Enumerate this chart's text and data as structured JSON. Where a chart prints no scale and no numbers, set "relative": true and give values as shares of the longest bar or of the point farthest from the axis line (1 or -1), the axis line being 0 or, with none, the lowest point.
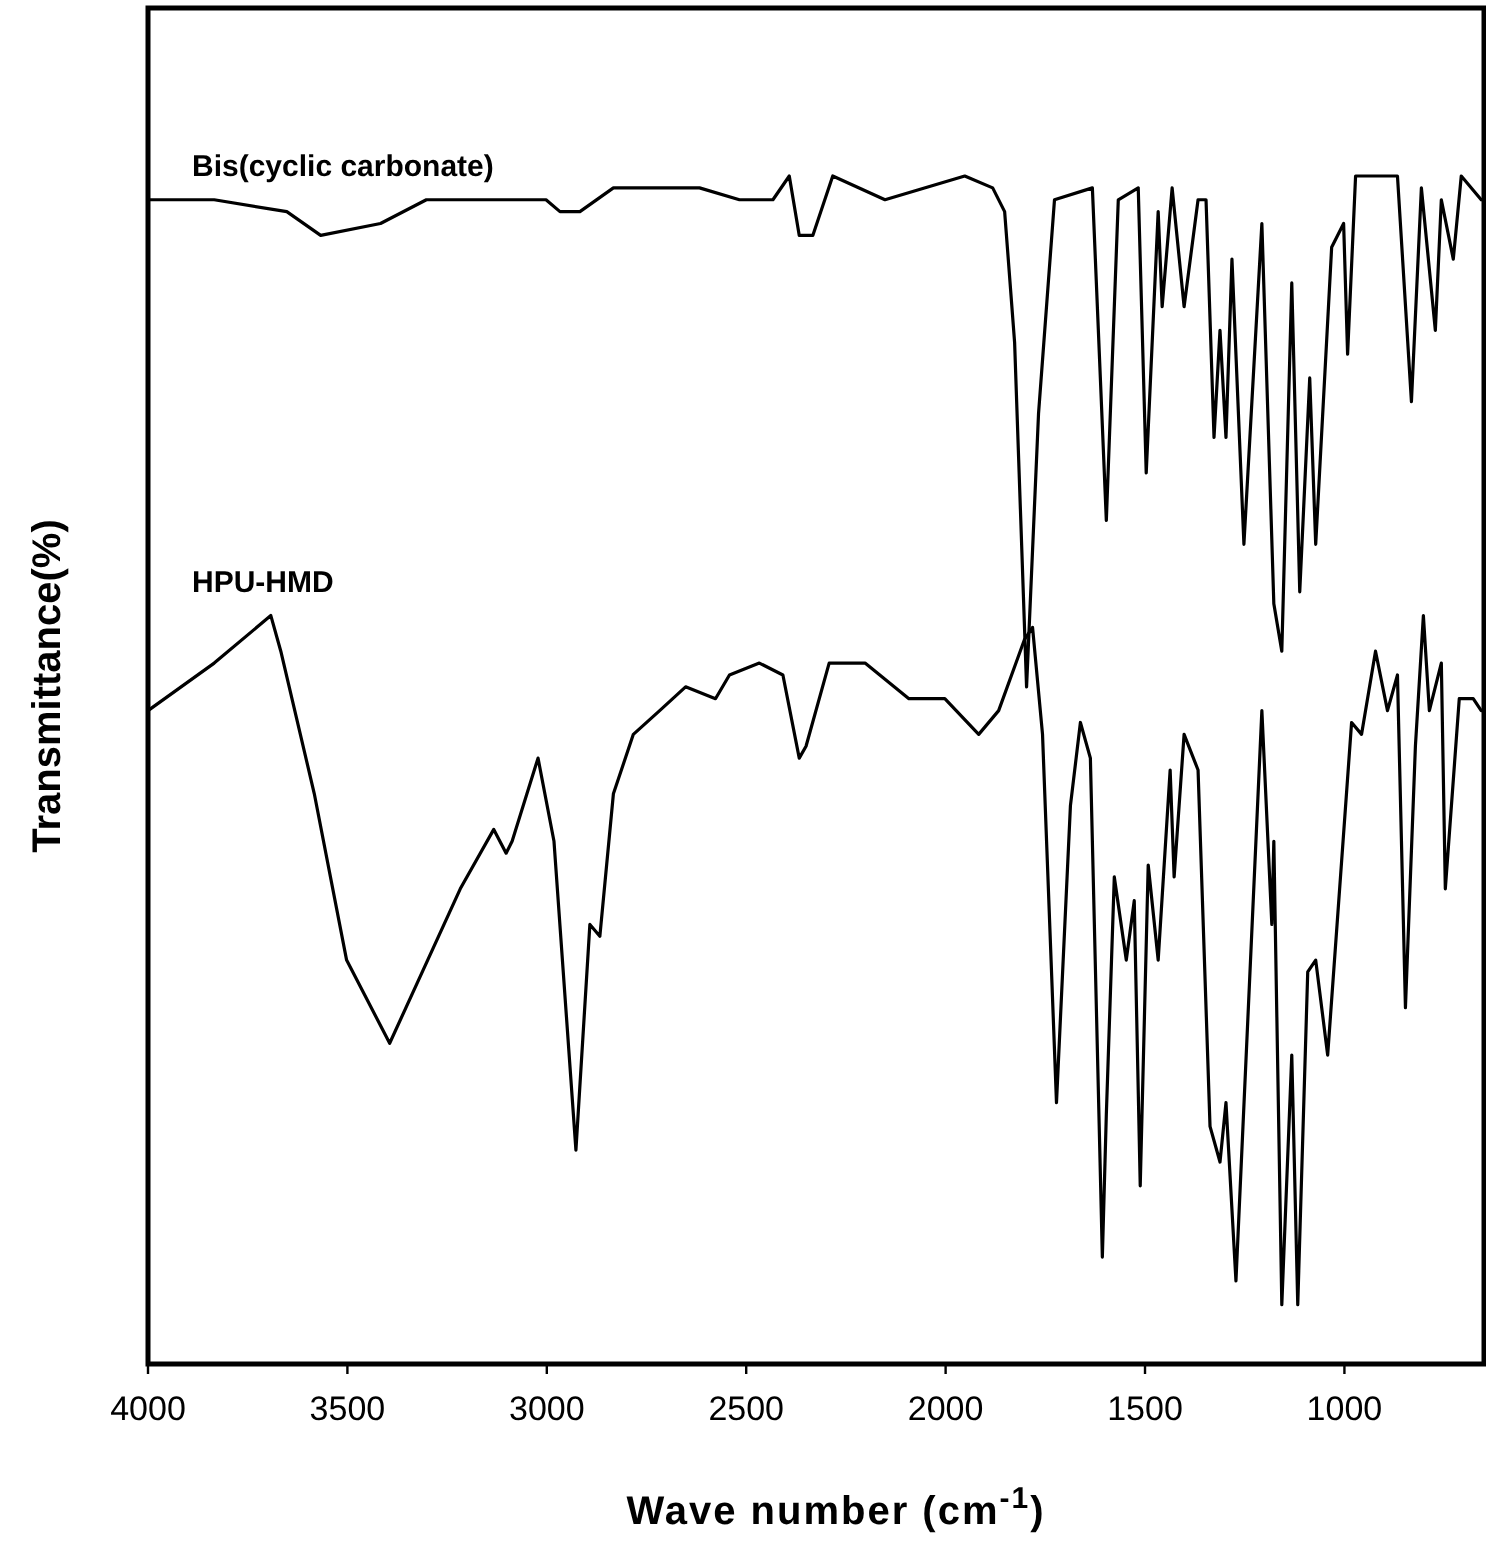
{
  "chart_data": {
    "type": "line",
    "xlabel": "Wave number (cm$^{-1}$)",
    "ylabel": "Transmittance(%)",
    "relative": true,
    "xlim": [
      4000,
      650
    ],
    "xticks": [
      4000,
      3500,
      3000,
      2500,
      2000,
      1500,
      1000
    ],
    "marker": "none",
    "line_style": "solid",
    "series": [
      {
        "name": "Bis(cyclic carbonate)",
        "color": "#000000",
        "x": [
          4000,
          3834,
          3652,
          3567,
          3417,
          3302,
          3002,
          2967,
          2917,
          2833,
          2617,
          2517,
          2433,
          2392,
          2367,
          2333,
          2283,
          2152,
          1952,
          1882,
          1852,
          1827,
          1797,
          1767,
          1727,
          1632,
          1597,
          1567,
          1517,
          1497,
          1467,
          1457,
          1432,
          1402,
          1367,
          1347,
          1327,
          1312,
          1297,
          1282,
          1252,
          1207,
          1177,
          1157,
          1132,
          1112,
          1087,
          1072,
          1032,
          1002,
          992,
          972,
          867,
          832,
          807,
          772,
          757,
          727,
          707,
          657
        ],
        "values": [
          0.98,
          0.98,
          0.97,
          0.95,
          0.96,
          0.98,
          0.98,
          0.97,
          0.97,
          0.99,
          0.99,
          0.98,
          0.98,
          1.0,
          0.95,
          0.95,
          1.0,
          0.98,
          1.0,
          0.99,
          0.97,
          0.86,
          0.57,
          0.8,
          0.98,
          0.99,
          0.71,
          0.98,
          0.99,
          0.75,
          0.97,
          0.89,
          0.99,
          0.89,
          0.98,
          0.98,
          0.78,
          0.87,
          0.78,
          0.93,
          0.69,
          0.96,
          0.64,
          0.6,
          0.91,
          0.65,
          0.83,
          0.69,
          0.94,
          0.96,
          0.85,
          1.0,
          1.0,
          0.81,
          0.99,
          0.87,
          0.98,
          0.93,
          1.0,
          0.98
        ]
      },
      {
        "name": "HPU-HMD",
        "color": "#000000",
        "x": [
          4000,
          3834,
          3692,
          3667,
          3583,
          3502,
          3394,
          3217,
          3133,
          3102,
          3087,
          3022,
          2982,
          2927,
          2892,
          2867,
          2833,
          2783,
          2717,
          2652,
          2577,
          2542,
          2467,
          2408,
          2367,
          2350,
          2292,
          2202,
          2092,
          2002,
          1917,
          1867,
          1802,
          1782,
          1757,
          1722,
          1687,
          1662,
          1637,
          1607,
          1597,
          1577,
          1547,
          1527,
          1512,
          1492,
          1467,
          1437,
          1427,
          1402,
          1367,
          1337,
          1312,
          1297,
          1272,
          1207,
          1182,
          1177,
          1157,
          1132,
          1117,
          1092,
          1072,
          1042,
          982,
          957,
          922,
          892,
          867,
          847,
          822,
          802,
          787,
          757,
          747,
          712,
          677,
          657
        ],
        "values": [
          0.55,
          0.59,
          0.63,
          0.6,
          0.48,
          0.34,
          0.27,
          0.4,
          0.45,
          0.43,
          0.44,
          0.51,
          0.44,
          0.18,
          0.37,
          0.36,
          0.48,
          0.53,
          0.55,
          0.57,
          0.56,
          0.58,
          0.59,
          0.58,
          0.51,
          0.52,
          0.59,
          0.59,
          0.56,
          0.56,
          0.53,
          0.55,
          0.61,
          0.62,
          0.53,
          0.22,
          0.47,
          0.54,
          0.51,
          0.09,
          0.21,
          0.41,
          0.34,
          0.39,
          0.15,
          0.42,
          0.34,
          0.5,
          0.41,
          0.53,
          0.5,
          0.2,
          0.17,
          0.22,
          0.07,
          0.55,
          0.37,
          0.44,
          0.05,
          0.26,
          0.05,
          0.33,
          0.34,
          0.26,
          0.54,
          0.53,
          0.6,
          0.55,
          0.58,
          0.3,
          0.52,
          0.63,
          0.55,
          0.59,
          0.4,
          0.56,
          0.56,
          0.55
        ]
      }
    ]
  }
}
